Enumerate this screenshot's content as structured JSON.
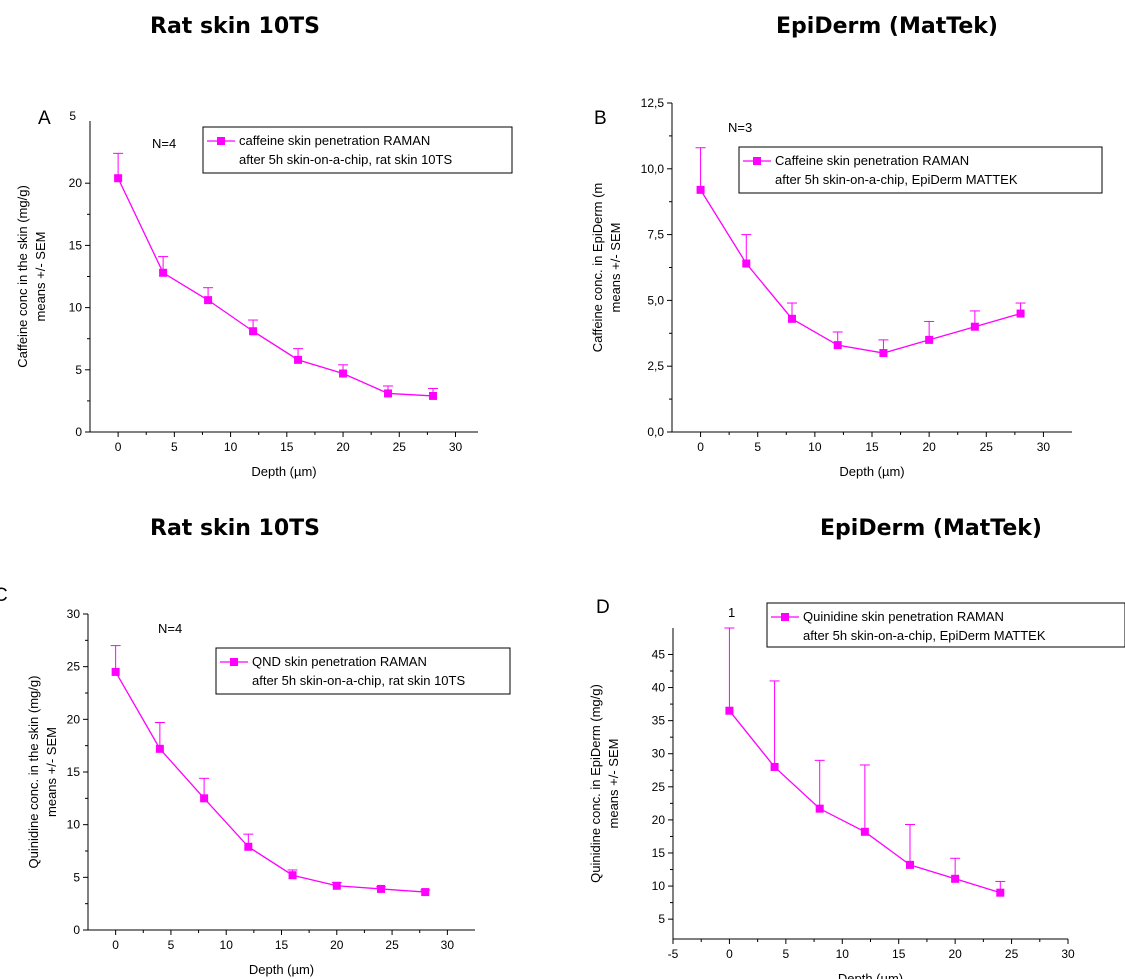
{
  "titles": {
    "top_left": "Rat skin 10TS",
    "top_right": "EpiDerm (MatTek)",
    "bottom_left": "Rat skin 10TS",
    "bottom_right": "EpiDerm (MatTek)"
  },
  "colors": {
    "series": "#ff00ff",
    "axis": "#000000"
  },
  "chart_data": [
    {
      "id": "A",
      "type": "line",
      "panel_letter": "A",
      "annotation": "N=4",
      "clipped_top_tick": "5",
      "xlabel": "Depth (µm)",
      "ylabel": [
        "Caffeine conc in the skin (mg/g)",
        "means +/- SEM"
      ],
      "x_ticks": [
        "0",
        "5",
        "10",
        "15",
        "20",
        "25",
        "30"
      ],
      "y_ticks": [
        "0",
        "5",
        "10",
        "15",
        "20"
      ],
      "xlim": [
        -2.5,
        32
      ],
      "ylim": [
        0,
        25
      ],
      "legend_position": "top-right",
      "series": [
        {
          "name": [
            "caffeine skin penetration RAMAN",
            "after 5h skin-on-a-chip, rat skin 10TS"
          ],
          "x": [
            0,
            4,
            8,
            12,
            16,
            20,
            24,
            28
          ],
          "y": [
            20.4,
            12.8,
            10.6,
            8.1,
            5.8,
            4.7,
            3.1,
            2.9
          ],
          "err": [
            2.0,
            1.3,
            1.0,
            0.9,
            0.9,
            0.7,
            0.6,
            0.6
          ]
        }
      ]
    },
    {
      "id": "B",
      "type": "line",
      "panel_letter": "B",
      "annotation": "N=3",
      "xlabel": "Depth (µm)",
      "ylabel": [
        "Caffeine conc. in EpiDerm (m",
        "means +/- SEM"
      ],
      "x_ticks": [
        "0",
        "5",
        "10",
        "15",
        "20",
        "25",
        "30"
      ],
      "y_ticks": [
        "0,0",
        "2,5",
        "5,0",
        "7,5",
        "10,0",
        "12,5"
      ],
      "xlim": [
        -2.5,
        32.5
      ],
      "ylim": [
        0,
        12.5
      ],
      "legend_position": "top-right",
      "series": [
        {
          "name": [
            "Caffeine skin penetration RAMAN",
            "after 5h skin-on-a-chip, EpiDerm MATTEK"
          ],
          "x": [
            0,
            4,
            8,
            12,
            16,
            20,
            24,
            28
          ],
          "y": [
            9.2,
            6.4,
            4.3,
            3.3,
            3.0,
            3.5,
            4.0,
            4.5
          ],
          "err": [
            1.6,
            1.1,
            0.6,
            0.5,
            0.5,
            0.7,
            0.6,
            0.4
          ]
        }
      ]
    },
    {
      "id": "C",
      "type": "line",
      "panel_letter": "C",
      "annotation": "N=4",
      "xlabel": "Depth (µm)",
      "ylabel": [
        "Quinidine conc. in the skin (mg/g)",
        "means +/- SEM"
      ],
      "x_ticks": [
        "0",
        "5",
        "10",
        "15",
        "20",
        "25",
        "30"
      ],
      "y_ticks": [
        "0",
        "5",
        "10",
        "15",
        "20",
        "25",
        "30"
      ],
      "xlim": [
        -2.5,
        32.5
      ],
      "ylim": [
        0,
        30
      ],
      "legend_position": "top-right",
      "series": [
        {
          "name": [
            "QND skin penetration RAMAN",
            "after 5h skin-on-a-chip, rat skin 10TS"
          ],
          "x": [
            0,
            4,
            8,
            12,
            16,
            20,
            24,
            28
          ],
          "y": [
            24.5,
            17.2,
            12.5,
            7.9,
            5.2,
            4.2,
            3.9,
            3.6
          ],
          "err": [
            2.5,
            2.5,
            1.9,
            1.2,
            0.5,
            0.3,
            0.2,
            0.2
          ]
        }
      ]
    },
    {
      "id": "D",
      "type": "line",
      "panel_letter": "D",
      "annotation": "1",
      "xlabel": "Depth (µm)",
      "ylabel": [
        "Quinidine conc. in EpiDerm (mg/g)",
        "means +/- SEM"
      ],
      "x_ticks": [
        "-5",
        "0",
        "5",
        "10",
        "15",
        "20",
        "25",
        "30"
      ],
      "y_ticks": [
        "5",
        "10",
        "15",
        "20",
        "25",
        "30",
        "35",
        "40",
        "45"
      ],
      "xlim": [
        -5,
        30
      ],
      "ylim": [
        2,
        49
      ],
      "legend_position": "top-right",
      "series": [
        {
          "name": [
            "Quinidine skin penetration RAMAN",
            "after 5h skin-on-a-chip, EpiDerm MATTEK"
          ],
          "x": [
            0,
            4,
            8,
            12,
            16,
            20,
            24
          ],
          "y": [
            36.5,
            28.0,
            21.7,
            18.2,
            13.2,
            11.1,
            9.0
          ],
          "err": [
            12.5,
            13.0,
            7.3,
            10.1,
            6.1,
            3.1,
            1.7
          ]
        }
      ]
    }
  ]
}
